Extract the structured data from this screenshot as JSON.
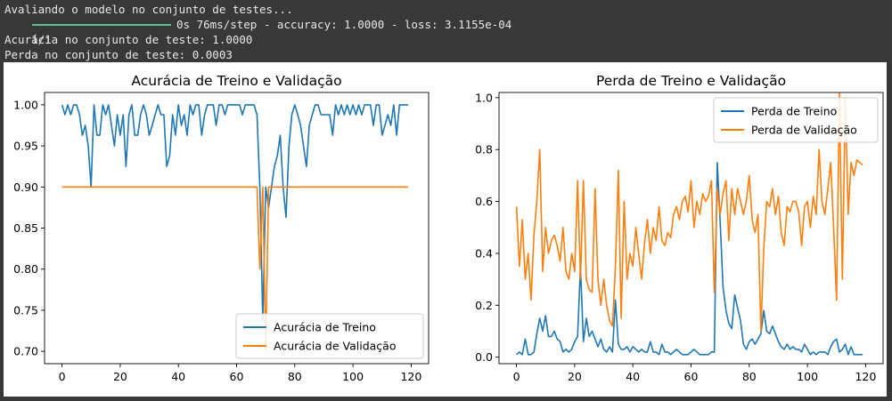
{
  "console": {
    "line1": "Avaliando o modelo no conjunto de testes...",
    "line2_step": "1/1",
    "line2_rest": "0s 76ms/step - accuracy: 1.0000 - loss: 3.1155e-04",
    "line3": "Acurácia no conjunto de teste: 1.0000",
    "line4": "Perda no conjunto de teste: 0.0003"
  },
  "colors": {
    "train": "#1f77b4",
    "val": "#ff7f0e",
    "progress": "#57c48a"
  },
  "chart_data": [
    {
      "type": "line",
      "title": "Acurácia de Treino e Validação",
      "xlabel": "",
      "ylabel": "",
      "xlim": [
        -6,
        126
      ],
      "ylim": [
        0.685,
        1.015
      ],
      "xticks": [
        0,
        20,
        40,
        60,
        80,
        100,
        120
      ],
      "yticks": [
        0.7,
        0.75,
        0.8,
        0.85,
        0.9,
        0.95,
        1.0
      ],
      "ytick_labels": [
        "0.70",
        "0.75",
        "0.80",
        "0.85",
        "0.90",
        "0.95",
        "1.00"
      ],
      "legend_position": "lower-right",
      "grid": false,
      "series": [
        {
          "name": "Acurácia de Treino",
          "color": "#1f77b4",
          "x": [
            0,
            1,
            2,
            3,
            4,
            5,
            6,
            7,
            8,
            9,
            10,
            11,
            12,
            13,
            14,
            15,
            16,
            17,
            18,
            19,
            20,
            21,
            22,
            23,
            24,
            25,
            26,
            27,
            28,
            29,
            30,
            31,
            32,
            33,
            34,
            35,
            36,
            37,
            38,
            39,
            40,
            41,
            42,
            43,
            44,
            45,
            46,
            47,
            48,
            49,
            50,
            51,
            52,
            53,
            54,
            55,
            56,
            57,
            58,
            59,
            60,
            61,
            62,
            63,
            64,
            65,
            66,
            67,
            68,
            69,
            70,
            71,
            72,
            73,
            74,
            75,
            76,
            77,
            78,
            79,
            80,
            81,
            82,
            83,
            84,
            85,
            86,
            87,
            88,
            89,
            90,
            91,
            92,
            93,
            94,
            95,
            96,
            97,
            98,
            99,
            100,
            101,
            102,
            103,
            104,
            105,
            106,
            107,
            108,
            109,
            110,
            111,
            112,
            113,
            114,
            115,
            116,
            117,
            118,
            119
          ],
          "y": [
            1.0,
            0.988,
            1.0,
            0.988,
            1.0,
            1.0,
            0.988,
            0.963,
            0.975,
            0.95,
            0.9,
            1.0,
            0.963,
            0.963,
            1.0,
            0.988,
            1.0,
            0.975,
            0.95,
            0.988,
            0.963,
            0.988,
            0.925,
            0.988,
            1.0,
            0.963,
            0.963,
            0.988,
            1.0,
            0.988,
            0.963,
            0.975,
            0.988,
            1.0,
            0.988,
            0.988,
            0.925,
            0.938,
            0.988,
            0.963,
            1.0,
            0.975,
            0.988,
            0.963,
            1.0,
            0.988,
            1.0,
            1.0,
            0.963,
            0.988,
            1.0,
            1.0,
            1.0,
            0.975,
            1.0,
            1.0,
            0.988,
            1.0,
            1.0,
            1.0,
            1.0,
            1.0,
            0.988,
            1.0,
            1.0,
            1.0,
            1.0,
            0.988,
            0.9,
            0.738,
            0.9,
            0.875,
            0.9,
            0.925,
            0.938,
            0.963,
            0.9,
            0.863,
            0.95,
            0.988,
            1.0,
            0.988,
            0.975,
            0.95,
            0.925,
            0.975,
            0.988,
            1.0,
            1.0,
            0.988,
            0.988,
            0.988,
            0.988,
            0.963,
            1.0,
            0.988,
            1.0,
            0.988,
            1.0,
            0.988,
            1.0,
            0.988,
            1.0,
            0.988,
            1.0,
            1.0,
            1.0,
            0.975,
            1.0,
            1.0,
            0.963,
            0.975,
            0.988,
            0.975,
            1.0,
            0.963,
            1.0,
            1.0,
            1.0,
            1.0
          ]
        },
        {
          "name": "Acurácia de Validação",
          "color": "#ff7f0e",
          "x": [
            0,
            1,
            2,
            3,
            4,
            5,
            6,
            7,
            8,
            9,
            10,
            11,
            12,
            13,
            14,
            15,
            16,
            17,
            18,
            19,
            20,
            21,
            22,
            23,
            24,
            25,
            26,
            27,
            28,
            29,
            30,
            31,
            32,
            33,
            34,
            35,
            36,
            37,
            38,
            39,
            40,
            41,
            42,
            43,
            44,
            45,
            46,
            47,
            48,
            49,
            50,
            51,
            52,
            53,
            54,
            55,
            56,
            57,
            58,
            59,
            60,
            61,
            62,
            63,
            64,
            65,
            66,
            67,
            68,
            69,
            70,
            71,
            72,
            73,
            74,
            75,
            76,
            77,
            78,
            79,
            80,
            81,
            82,
            83,
            84,
            85,
            86,
            87,
            88,
            89,
            90,
            91,
            92,
            93,
            94,
            95,
            96,
            97,
            98,
            99,
            100,
            101,
            102,
            103,
            104,
            105,
            106,
            107,
            108,
            109,
            110,
            111,
            112,
            113,
            114,
            115,
            116,
            117,
            118,
            119
          ],
          "y": [
            0.9,
            0.9,
            0.9,
            0.9,
            0.9,
            0.9,
            0.9,
            0.9,
            0.9,
            0.9,
            0.9,
            0.9,
            0.9,
            0.9,
            0.9,
            0.9,
            0.9,
            0.9,
            0.9,
            0.9,
            0.9,
            0.9,
            0.9,
            0.9,
            0.9,
            0.9,
            0.9,
            0.9,
            0.9,
            0.9,
            0.9,
            0.9,
            0.9,
            0.9,
            0.9,
            0.9,
            0.9,
            0.9,
            0.9,
            0.9,
            0.9,
            0.9,
            0.9,
            0.9,
            0.9,
            0.9,
            0.9,
            0.9,
            0.9,
            0.9,
            0.9,
            0.9,
            0.9,
            0.9,
            0.9,
            0.9,
            0.9,
            0.9,
            0.9,
            0.9,
            0.9,
            0.9,
            0.9,
            0.9,
            0.9,
            0.9,
            0.9,
            0.9,
            0.8,
            0.9,
            0.7,
            0.9,
            0.9,
            0.9,
            0.9,
            0.9,
            0.9,
            0.9,
            0.9,
            0.9,
            0.9,
            0.9,
            0.9,
            0.9,
            0.9,
            0.9,
            0.9,
            0.9,
            0.9,
            0.9,
            0.9,
            0.9,
            0.9,
            0.9,
            0.9,
            0.9,
            0.9,
            0.9,
            0.9,
            0.9,
            0.9,
            0.9,
            0.9,
            0.9,
            0.9,
            0.9,
            0.9,
            0.9,
            0.9,
            0.9,
            0.9,
            0.9,
            0.9,
            0.9,
            0.9,
            0.9,
            0.9,
            0.9,
            0.9,
            0.9
          ]
        }
      ]
    },
    {
      "type": "line",
      "title": "Perda de Treino e Validação",
      "xlabel": "",
      "ylabel": "",
      "xlim": [
        -6,
        126
      ],
      "ylim": [
        -0.025,
        1.02
      ],
      "xticks": [
        0,
        20,
        40,
        60,
        80,
        100,
        120
      ],
      "yticks": [
        0.0,
        0.2,
        0.4,
        0.6,
        0.8,
        1.0
      ],
      "ytick_labels": [
        "0.0",
        "0.2",
        "0.4",
        "0.6",
        "0.8",
        "1.0"
      ],
      "legend_position": "upper-right",
      "grid": false,
      "series": [
        {
          "name": "Perda de Treino",
          "color": "#1f77b4",
          "x": [
            0,
            1,
            2,
            3,
            4,
            5,
            6,
            7,
            8,
            9,
            10,
            11,
            12,
            13,
            14,
            15,
            16,
            17,
            18,
            19,
            20,
            21,
            22,
            23,
            24,
            25,
            26,
            27,
            28,
            29,
            30,
            31,
            32,
            33,
            34,
            35,
            36,
            37,
            38,
            39,
            40,
            41,
            42,
            43,
            44,
            45,
            46,
            47,
            48,
            49,
            50,
            51,
            52,
            53,
            54,
            55,
            56,
            57,
            58,
            59,
            60,
            61,
            62,
            63,
            64,
            65,
            66,
            67,
            68,
            69,
            70,
            71,
            72,
            73,
            74,
            75,
            76,
            77,
            78,
            79,
            80,
            81,
            82,
            83,
            84,
            85,
            86,
            87,
            88,
            89,
            90,
            91,
            92,
            93,
            94,
            95,
            96,
            97,
            98,
            99,
            100,
            101,
            102,
            103,
            104,
            105,
            106,
            107,
            108,
            109,
            110,
            111,
            112,
            113,
            114,
            115,
            116,
            117,
            118,
            119
          ],
          "y": [
            0.01,
            0.02,
            0.01,
            0.07,
            0.01,
            0.01,
            0.02,
            0.09,
            0.15,
            0.1,
            0.16,
            0.08,
            0.08,
            0.1,
            0.07,
            0.06,
            0.02,
            0.03,
            0.02,
            0.03,
            0.06,
            0.08,
            0.35,
            0.06,
            0.15,
            0.08,
            0.1,
            0.07,
            0.04,
            0.07,
            0.03,
            0.02,
            0.04,
            0.02,
            0.22,
            0.05,
            0.03,
            0.03,
            0.04,
            0.02,
            0.04,
            0.03,
            0.02,
            0.03,
            0.02,
            0.02,
            0.06,
            0.02,
            0.02,
            0.01,
            0.05,
            0.02,
            0.02,
            0.01,
            0.02,
            0.03,
            0.02,
            0.01,
            0.01,
            0.01,
            0.02,
            0.03,
            0.02,
            0.01,
            0.01,
            0.01,
            0.01,
            0.02,
            0.02,
            0.75,
            0.52,
            0.27,
            0.18,
            0.13,
            0.11,
            0.24,
            0.19,
            0.14,
            0.05,
            0.03,
            0.06,
            0.07,
            0.05,
            0.07,
            0.09,
            0.18,
            0.1,
            0.09,
            0.12,
            0.09,
            0.06,
            0.04,
            0.03,
            0.05,
            0.03,
            0.04,
            0.03,
            0.03,
            0.02,
            0.05,
            0.03,
            0.01,
            0.02,
            0.01,
            0.02,
            0.02,
            0.02,
            0.01,
            0.04,
            0.06,
            0.07,
            0.02,
            0.03,
            0.05,
            0.01,
            0.04,
            0.01,
            0.01,
            0.01,
            0.01
          ]
        },
        {
          "name": "Perda de Validação",
          "color": "#ff7f0e",
          "x": [
            0,
            1,
            2,
            3,
            4,
            5,
            6,
            7,
            8,
            9,
            10,
            11,
            12,
            13,
            14,
            15,
            16,
            17,
            18,
            19,
            20,
            21,
            22,
            23,
            24,
            25,
            26,
            27,
            28,
            29,
            30,
            31,
            32,
            33,
            34,
            35,
            36,
            37,
            38,
            39,
            40,
            41,
            42,
            43,
            44,
            45,
            46,
            47,
            48,
            49,
            50,
            51,
            52,
            53,
            54,
            55,
            56,
            57,
            58,
            59,
            60,
            61,
            62,
            63,
            64,
            65,
            66,
            67,
            68,
            69,
            70,
            71,
            72,
            73,
            74,
            75,
            76,
            77,
            78,
            79,
            80,
            81,
            82,
            83,
            84,
            85,
            86,
            87,
            88,
            89,
            90,
            91,
            92,
            93,
            94,
            95,
            96,
            97,
            98,
            99,
            100,
            101,
            102,
            103,
            104,
            105,
            106,
            107,
            108,
            109,
            110,
            111,
            112,
            113,
            114,
            115,
            116,
            117,
            118,
            119
          ],
          "y": [
            0.58,
            0.35,
            0.53,
            0.3,
            0.4,
            0.22,
            0.47,
            0.6,
            0.8,
            0.33,
            0.5,
            0.4,
            0.45,
            0.47,
            0.43,
            0.37,
            0.5,
            0.33,
            0.3,
            0.4,
            0.33,
            0.68,
            0.3,
            0.68,
            0.3,
            0.26,
            0.25,
            0.65,
            0.3,
            0.2,
            0.3,
            0.2,
            0.14,
            0.12,
            0.35,
            0.72,
            0.15,
            0.6,
            0.3,
            0.4,
            0.35,
            0.5,
            0.4,
            0.3,
            0.44,
            0.53,
            0.4,
            0.5,
            0.45,
            0.58,
            0.45,
            0.43,
            0.48,
            0.46,
            0.55,
            0.58,
            0.53,
            0.6,
            0.62,
            0.56,
            0.68,
            0.5,
            0.6,
            0.55,
            0.63,
            0.6,
            0.62,
            0.68,
            0.25,
            0.65,
            0.55,
            0.63,
            0.68,
            0.45,
            0.65,
            0.55,
            0.65,
            0.6,
            0.55,
            0.6,
            0.7,
            0.53,
            0.48,
            0.55,
            0.1,
            0.42,
            0.6,
            0.58,
            0.65,
            0.55,
            0.62,
            0.48,
            0.43,
            0.58,
            0.56,
            0.6,
            0.6,
            0.56,
            0.43,
            0.58,
            0.6,
            0.5,
            0.62,
            0.55,
            0.8,
            0.6,
            0.55,
            0.65,
            0.75,
            0.5,
            0.22,
            1.02,
            0.3,
            1.0,
            0.55,
            0.75,
            0.7,
            0.76,
            0.75,
            0.74
          ]
        }
      ]
    }
  ]
}
